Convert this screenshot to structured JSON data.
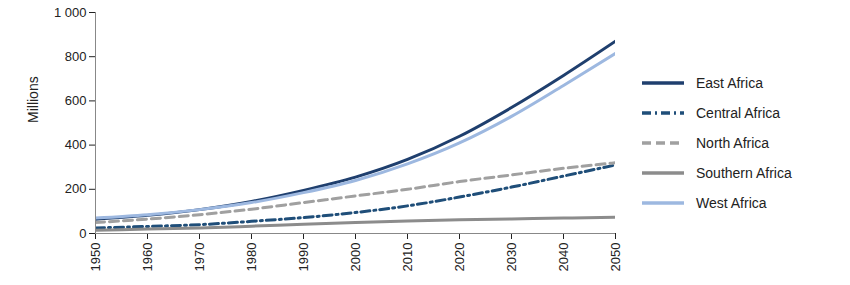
{
  "chart_data": {
    "type": "line",
    "y_label": "Millions",
    "x": [
      1950,
      1960,
      1970,
      1980,
      1990,
      2000,
      2010,
      2020,
      2030,
      2040,
      2050
    ],
    "xlim": [
      1950,
      2050
    ],
    "xticks": [
      1950,
      1960,
      1970,
      1980,
      1990,
      2000,
      2010,
      2020,
      2030,
      2040,
      2050
    ],
    "ylim": [
      0,
      1000
    ],
    "yticks": [
      0,
      200,
      400,
      600,
      800,
      {
        "value": 1000,
        "label": "1 000"
      }
    ],
    "grid": false,
    "legend": "right",
    "series": [
      {
        "name": "East Africa",
        "color": "#1f3f6e",
        "line_style": "solid",
        "values": [
          65,
          82,
          108,
          145,
          195,
          255,
          335,
          440,
          570,
          715,
          870
        ]
      },
      {
        "name": "Central Africa",
        "color": "#1f4e79",
        "line_style": "dash_dot",
        "values": [
          25,
          32,
          40,
          55,
          72,
          95,
          125,
          165,
          210,
          260,
          310
        ]
      },
      {
        "name": "North Africa",
        "color": "#a0a0a0",
        "line_style": "dashed",
        "values": [
          50,
          65,
          85,
          110,
          140,
          170,
          200,
          235,
          265,
          295,
          320
        ]
      },
      {
        "name": "Southern Africa",
        "color": "#8c8c8c",
        "line_style": "solid",
        "values": [
          15,
          20,
          25,
          33,
          42,
          50,
          57,
          62,
          66,
          70,
          73
        ]
      },
      {
        "name": "West Africa",
        "color": "#9db8e0",
        "line_style": "solid",
        "values": [
          70,
          85,
          108,
          140,
          185,
          240,
          315,
          410,
          530,
          670,
          815
        ]
      }
    ]
  }
}
